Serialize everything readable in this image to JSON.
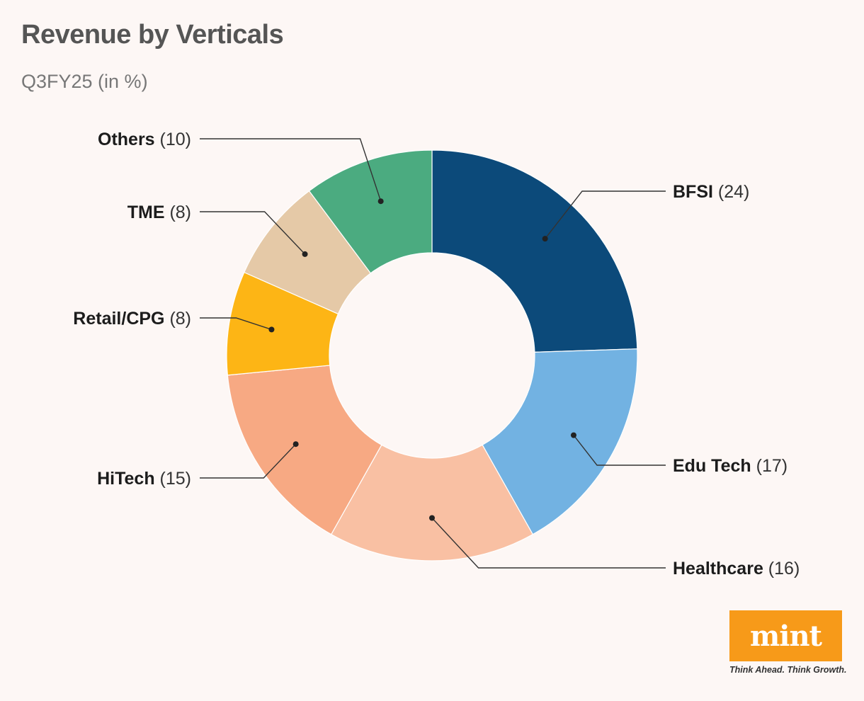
{
  "header": {
    "title": "Revenue by Verticals",
    "subtitle": "Q3FY25 (in %)"
  },
  "chart_data": {
    "type": "pie",
    "variant": "donut",
    "title": "Revenue by Verticals",
    "subtitle": "Q3FY25 (in %)",
    "unit": "%",
    "start": "12 o'clock",
    "direction": "clockwise",
    "slices": [
      {
        "id": "bfsi",
        "label": "BFSI",
        "value": 24,
        "value_text": "(24)",
        "color": "#0c4a7a",
        "side": "right"
      },
      {
        "id": "edu-tech",
        "label": "Edu Tech",
        "value": 17,
        "value_text": "(17)",
        "color": "#72b2e2",
        "side": "right"
      },
      {
        "id": "healthcare",
        "label": "Healthcare",
        "value": 16,
        "value_text": "(16)",
        "color": "#f9c0a3",
        "side": "right"
      },
      {
        "id": "hitech",
        "label": "HiTech",
        "value": 15,
        "value_text": "(15)",
        "color": "#f7a983",
        "side": "left"
      },
      {
        "id": "retail-cpg",
        "label": "Retail/CPG",
        "value": 8,
        "value_text": "(8)",
        "color": "#fdb515",
        "side": "left"
      },
      {
        "id": "tme",
        "label": "TME",
        "value": 8,
        "value_text": "(8)",
        "color": "#e5c9a7",
        "side": "left"
      },
      {
        "id": "others",
        "label": "Others",
        "value": 10,
        "value_text": "(10)",
        "color": "#4bab80",
        "side": "left"
      }
    ]
  },
  "branding": {
    "logo": "mint",
    "tagline": "Think Ahead. Think Growth.",
    "logo_color": "#f79a19"
  }
}
